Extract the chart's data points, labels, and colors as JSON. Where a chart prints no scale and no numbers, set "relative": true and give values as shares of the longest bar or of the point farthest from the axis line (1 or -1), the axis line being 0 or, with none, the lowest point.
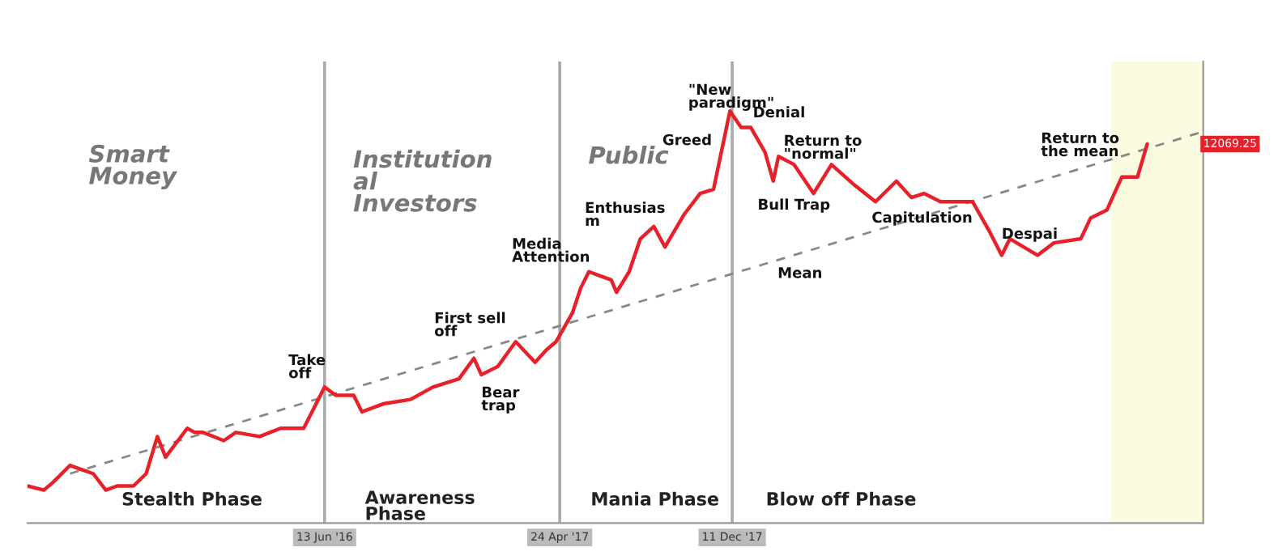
{
  "chart_data": {
    "type": "line",
    "relative": true,
    "xlim": [
      "2015-05-12",
      "2019-09-03"
    ],
    "tick_labels": "x",
    "marker": "none",
    "xticks": [
      {
        "value": "2016-06-13",
        "label": "13 Jun '16"
      },
      {
        "value": "2017-04-24",
        "label": "24 Apr '17"
      },
      {
        "value": "2017-12-11",
        "label": "11 Dec '17"
      }
    ],
    "series": [
      {
        "color": "#e8202a",
        "line_style": "solid",
        "x": [
          "2015-05-12",
          "2015-06-03",
          "2015-06-16",
          "2015-07-08",
          "2015-07-23",
          "2015-08-08",
          "2015-08-25",
          "2015-09-09",
          "2015-10-01",
          "2015-10-18",
          "2015-11-02",
          "2015-11-13",
          "2015-12-12",
          "2015-12-22",
          "2016-01-02",
          "2016-01-30",
          "2016-02-15",
          "2016-03-18",
          "2016-04-15",
          "2016-05-16",
          "2016-06-13",
          "2016-06-28",
          "2016-07-22",
          "2016-08-02",
          "2016-09-01",
          "2016-10-06",
          "2016-11-05",
          "2016-12-10",
          "2016-12-30",
          "2017-01-09",
          "2017-01-31",
          "2017-02-24",
          "2017-03-22",
          "2017-04-06",
          "2017-04-19",
          "2017-05-11",
          "2017-05-22",
          "2017-06-02",
          "2017-06-17",
          "2017-07-02",
          "2017-07-09",
          "2017-07-26",
          "2017-08-10",
          "2017-08-28",
          "2017-09-12",
          "2017-10-08",
          "2017-10-29",
          "2017-11-16",
          "2017-12-08",
          "2017-12-23",
          "2018-01-05",
          "2018-01-24",
          "2018-02-04",
          "2018-02-11",
          "2018-03-04",
          "2018-03-30",
          "2018-04-23",
          "2018-05-24",
          "2018-06-21",
          "2018-07-19",
          "2018-08-08",
          "2018-08-25",
          "2018-09-16",
          "2018-10-29",
          "2018-11-20",
          "2018-12-07",
          "2018-12-18",
          "2019-01-24",
          "2019-02-15",
          "2019-03-23",
          "2019-04-05",
          "2019-04-27",
          "2019-05-17",
          "2019-06-07",
          "2019-06-20"
        ],
        "values": [
          0.09,
          0.08,
          0.1,
          0.14,
          0.13,
          0.12,
          0.08,
          0.09,
          0.09,
          0.12,
          0.21,
          0.16,
          0.23,
          0.22,
          0.22,
          0.2,
          0.22,
          0.21,
          0.23,
          0.23,
          0.33,
          0.31,
          0.31,
          0.27,
          0.29,
          0.3,
          0.33,
          0.35,
          0.4,
          0.36,
          0.38,
          0.44,
          0.39,
          0.42,
          0.44,
          0.51,
          0.57,
          0.61,
          0.6,
          0.59,
          0.56,
          0.61,
          0.69,
          0.72,
          0.67,
          0.75,
          0.8,
          0.81,
          1.0,
          0.96,
          0.96,
          0.9,
          0.83,
          0.89,
          0.87,
          0.8,
          0.87,
          0.82,
          0.78,
          0.83,
          0.79,
          0.8,
          0.78,
          0.78,
          0.71,
          0.65,
          0.69,
          0.65,
          0.68,
          0.69,
          0.74,
          0.76,
          0.84,
          0.84,
          0.92
        ]
      },
      {
        "type": "line",
        "color": "#888888",
        "line_style": "dashed",
        "x": [
          "2015-07-08",
          "2019-09-03"
        ],
        "values": [
          0.12,
          0.95
        ]
      }
    ],
    "ref_lines": [
      {
        "axis": "x",
        "value": "2016-06-13",
        "color": "#aaaaaa",
        "line_style": "solid"
      },
      {
        "axis": "x",
        "value": "2017-04-24",
        "color": "#aaaaaa",
        "line_style": "solid"
      },
      {
        "axis": "x",
        "value": "2017-12-11",
        "color": "#aaaaaa",
        "line_style": "solid"
      }
    ],
    "bands": [
      {
        "axis": "x",
        "from": "2019-05-03",
        "to": "2019-09-03",
        "color": "#fbfbe0"
      }
    ],
    "annotations": [
      "Smart\nMoney",
      "Institution\nal\nInvestors",
      "Public",
      "Stealth Phase",
      "Awareness\nPhase",
      "Mania Phase",
      "Blow off Phase",
      "Take\noff",
      "First sell\noff",
      "Bear\ntrap",
      "Media\nAttention",
      "Enthusias\nm",
      "Greed",
      "\"New\nparadigm\"",
      "Denial",
      {
        "text": "Return to\n\"normal\"",
        "x": "2018-02-18",
        "y": 0.91
      },
      "Bull Trap",
      "Mean",
      "Capitulation",
      {
        "text": "Despai",
        "x": "2018-12-07",
        "y": 0.7
      },
      "Return to\nthe mean",
      {
        "text": "12069.25",
        "x": "2019-09-03",
        "y": 0.92
      }
    ]
  }
}
